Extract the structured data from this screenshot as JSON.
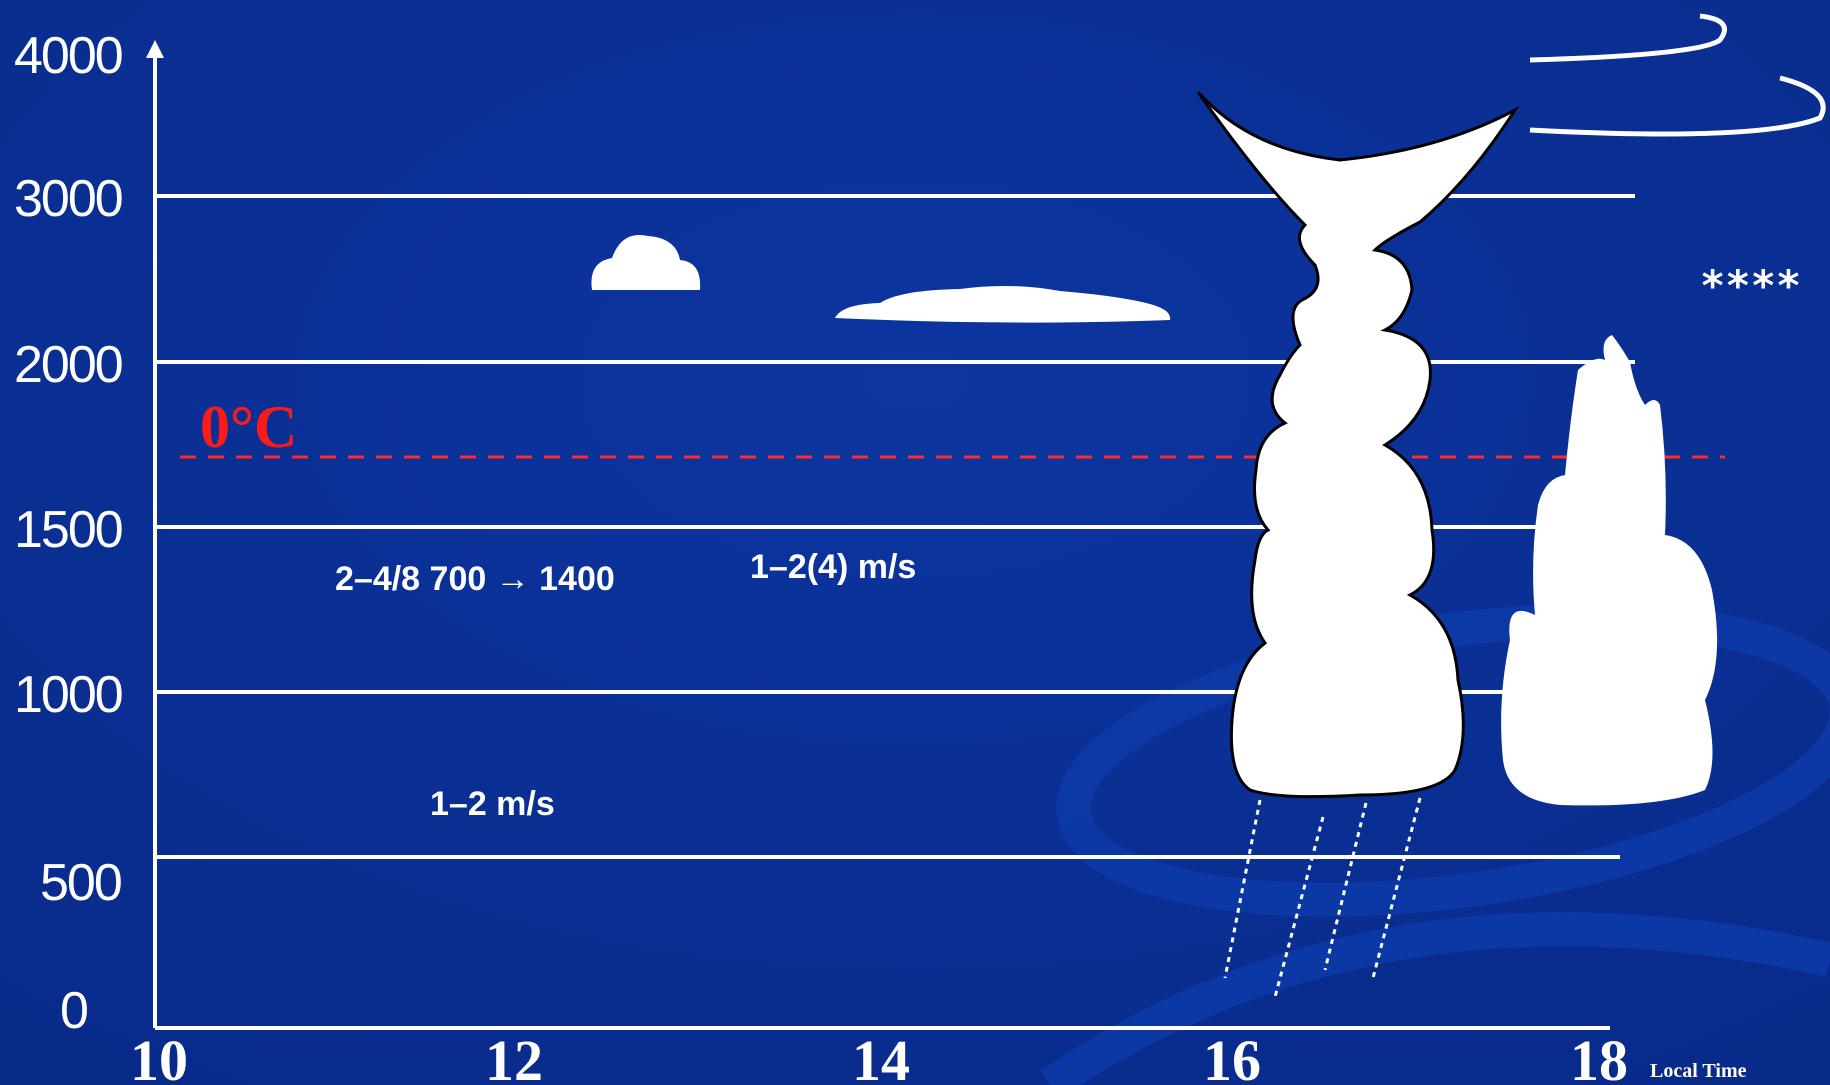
{
  "diagram": {
    "y_axis": {
      "ticks": [
        "4000",
        "3000",
        "2000",
        "1500",
        "1000",
        "500",
        "0"
      ]
    },
    "x_axis": {
      "ticks": [
        "10",
        "12",
        "14",
        "16",
        "18"
      ],
      "unit_label": "Local Time"
    },
    "freezing_level": {
      "label": "0°C",
      "color": "#ff2222"
    },
    "annotations": {
      "cloud_cover": "2–4/8 700 → 1400",
      "upper_lift": "1–2(4) m/s",
      "lower_lift": "1–2 m/s",
      "precip_stars": "****"
    },
    "colors": {
      "background": "#0a2f92",
      "lines": "#ffffff",
      "cloud": "#ffffff"
    },
    "icons": [
      "cumulus-cloud-icon",
      "cumulonimbus-icon",
      "rain-streaks-icon",
      "cirrus-wisp-icon"
    ]
  }
}
